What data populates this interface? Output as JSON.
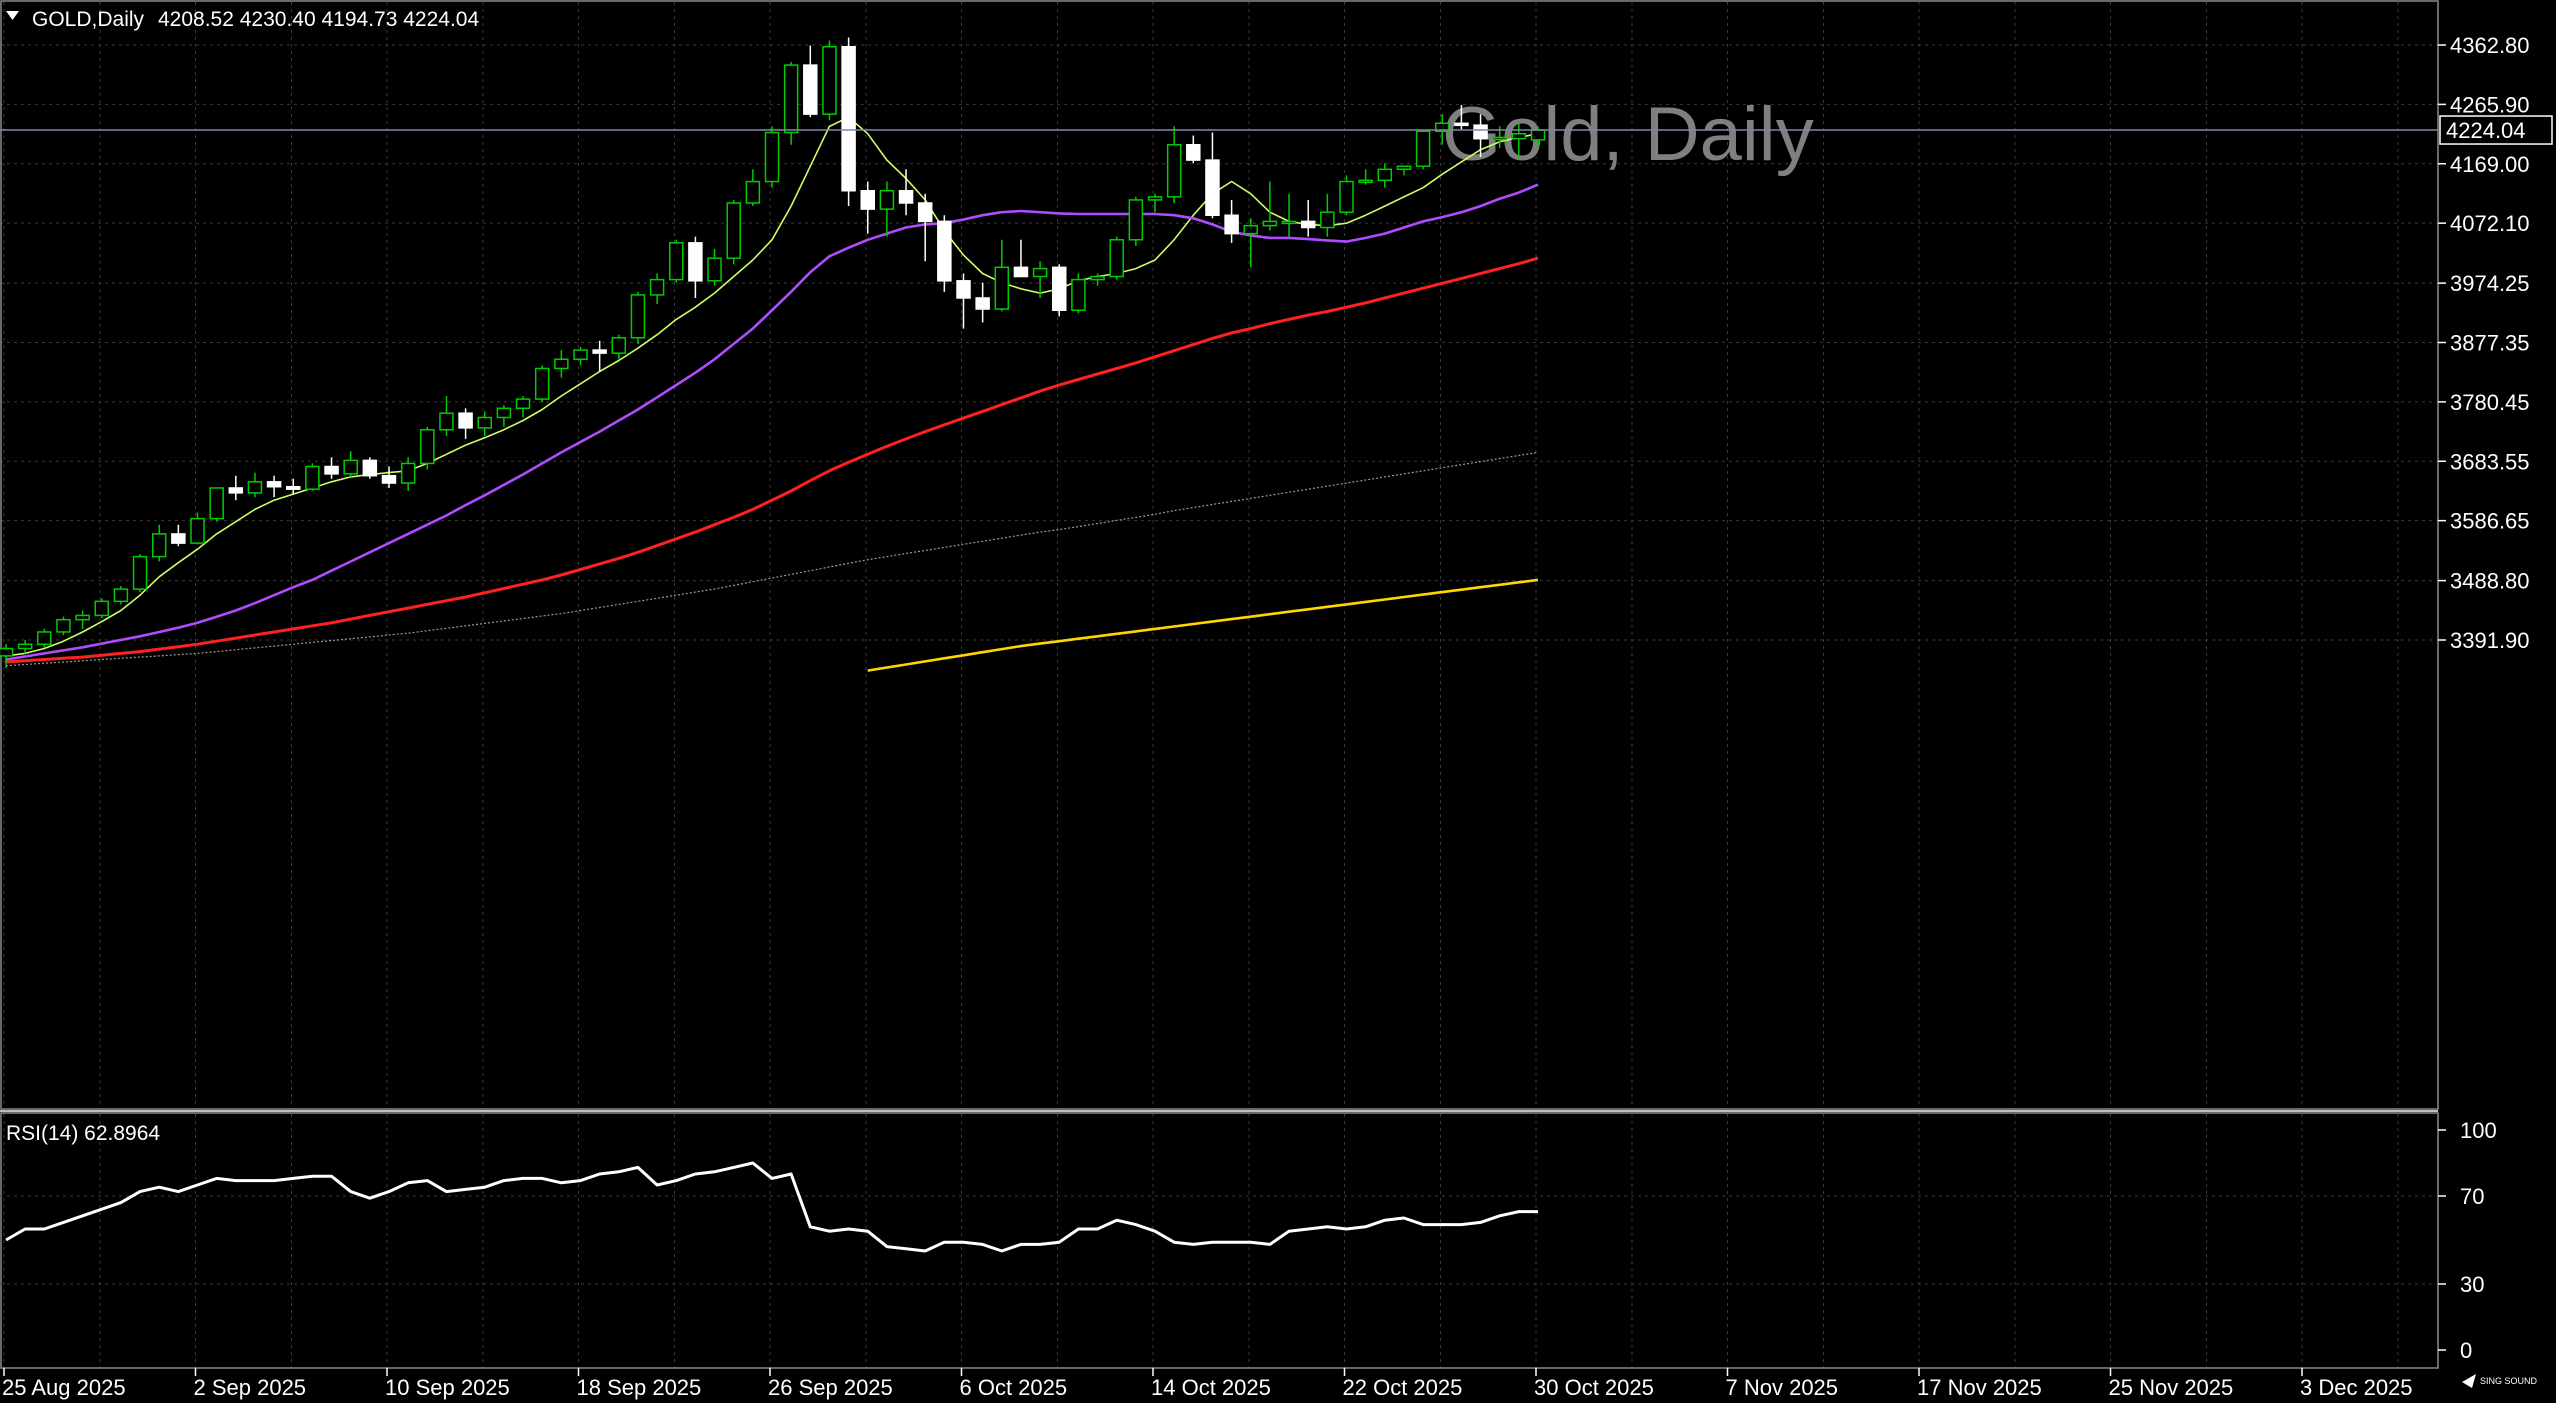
{
  "header": {
    "arrow_icon": "triangle-down-icon",
    "symbol": "GOLD,Daily",
    "ohlc": "4208.52 4230.40 4194.73 4224.04"
  },
  "watermark": "Gold, Daily",
  "current_price_label": "4224.04",
  "brand_logo_text": "SING SOUND",
  "colors": {
    "background": "#000000",
    "grid": "#3a3a3a",
    "bull_candle": "#00cc00",
    "bear_candle": "#ffffff",
    "ma_fast": "#ccff66",
    "ma_mid": "#b04cff",
    "ma_slow": "#ff2020",
    "ma_long": "#9a9a9a",
    "ma_longest": "#ffd700",
    "rsi_line": "#ffffff"
  },
  "chart_data": [
    {
      "type": "candlestick",
      "title": "Gold, Daily",
      "y_ticks": [
        "4362.80",
        "4265.90",
        "4169.00",
        "4072.10",
        "3974.25",
        "3877.35",
        "3780.45",
        "3683.55",
        "3586.65",
        "3488.80",
        "3391.90"
      ],
      "x_ticks": [
        "25 Aug 2025",
        "2 Sep 2025",
        "10 Sep 2025",
        "18 Sep 2025",
        "26 Sep 2025",
        "6 Oct 2025",
        "14 Oct 2025",
        "22 Oct 2025",
        "30 Oct 2025",
        "7 Nov 2025",
        "17 Nov 2025",
        "25 Nov 2025",
        "3 Dec 2025"
      ],
      "y_range": [
        3342,
        4400
      ],
      "grid": true,
      "candles": [
        [
          3366,
          3385,
          3346,
          3378
        ],
        [
          3378,
          3392,
          3370,
          3385
        ],
        [
          3385,
          3410,
          3380,
          3405
        ],
        [
          3405,
          3430,
          3400,
          3425
        ],
        [
          3425,
          3440,
          3410,
          3432
        ],
        [
          3432,
          3460,
          3428,
          3455
        ],
        [
          3455,
          3480,
          3450,
          3475
        ],
        [
          3475,
          3532,
          3470,
          3528
        ],
        [
          3528,
          3580,
          3520,
          3565
        ],
        [
          3565,
          3580,
          3545,
          3550
        ],
        [
          3550,
          3600,
          3548,
          3590
        ],
        [
          3590,
          3640,
          3585,
          3640
        ],
        [
          3640,
          3660,
          3620,
          3632
        ],
        [
          3632,
          3665,
          3625,
          3650
        ],
        [
          3650,
          3660,
          3625,
          3642
        ],
        [
          3642,
          3655,
          3630,
          3638
        ],
        [
          3638,
          3680,
          3635,
          3675
        ],
        [
          3675,
          3690,
          3655,
          3663
        ],
        [
          3663,
          3700,
          3658,
          3685
        ],
        [
          3685,
          3690,
          3655,
          3660
        ],
        [
          3660,
          3675,
          3640,
          3648
        ],
        [
          3648,
          3690,
          3635,
          3680
        ],
        [
          3680,
          3740,
          3670,
          3735
        ],
        [
          3735,
          3790,
          3725,
          3762
        ],
        [
          3762,
          3770,
          3720,
          3738
        ],
        [
          3738,
          3765,
          3725,
          3755
        ],
        [
          3755,
          3775,
          3740,
          3770
        ],
        [
          3770,
          3790,
          3755,
          3785
        ],
        [
          3785,
          3840,
          3780,
          3835
        ],
        [
          3835,
          3865,
          3820,
          3850
        ],
        [
          3850,
          3870,
          3840,
          3865
        ],
        [
          3865,
          3880,
          3830,
          3860
        ],
        [
          3860,
          3890,
          3850,
          3885
        ],
        [
          3885,
          3960,
          3875,
          3955
        ],
        [
          3955,
          3990,
          3940,
          3980
        ],
        [
          3980,
          4045,
          3975,
          4040
        ],
        [
          4040,
          4050,
          3950,
          3978
        ],
        [
          3978,
          4030,
          3970,
          4015
        ],
        [
          4015,
          4110,
          4005,
          4105
        ],
        [
          4105,
          4160,
          4100,
          4140
        ],
        [
          4140,
          4230,
          4130,
          4220
        ],
        [
          4220,
          4335,
          4200,
          4330
        ],
        [
          4330,
          4362,
          4245,
          4250
        ],
        [
          4250,
          4370,
          4240,
          4360
        ],
        [
          4360,
          4375,
          4100,
          4125
        ],
        [
          4125,
          4140,
          4055,
          4095
        ],
        [
          4095,
          4140,
          4050,
          4125
        ],
        [
          4125,
          4160,
          4085,
          4105
        ],
        [
          4105,
          4120,
          4010,
          4075
        ],
        [
          4075,
          4085,
          3960,
          3978
        ],
        [
          3978,
          3990,
          3900,
          3950
        ],
        [
          3950,
          3975,
          3910,
          3932
        ],
        [
          3932,
          4045,
          3928,
          4000
        ],
        [
          4000,
          4045,
          3995,
          3985
        ],
        [
          3985,
          4010,
          3950,
          3998
        ],
        [
          4000,
          4005,
          3920,
          3930
        ],
        [
          3930,
          3990,
          3925,
          3980
        ],
        [
          3980,
          3990,
          3970,
          3985
        ],
        [
          3985,
          4050,
          3980,
          4045
        ],
        [
          4045,
          4115,
          4035,
          4110
        ],
        [
          4110,
          4120,
          4090,
          4115
        ],
        [
          4115,
          4230,
          4105,
          4200
        ],
        [
          4200,
          4215,
          4170,
          4175
        ],
        [
          4175,
          4220,
          4080,
          4085
        ],
        [
          4085,
          4110,
          4040,
          4055
        ],
        [
          4055,
          4080,
          4000,
          4068
        ],
        [
          4068,
          4140,
          4060,
          4075
        ],
        [
          4075,
          4120,
          4050,
          4075
        ],
        [
          4075,
          4110,
          4050,
          4065
        ],
        [
          4065,
          4120,
          4050,
          4090
        ],
        [
          4090,
          4150,
          4085,
          4140
        ],
        [
          4140,
          4160,
          4135,
          4142
        ],
        [
          4142,
          4170,
          4130,
          4160
        ],
        [
          4160,
          4165,
          4150,
          4165
        ],
        [
          4165,
          4225,
          4160,
          4222
        ],
        [
          4222,
          4250,
          4200,
          4235
        ],
        [
          4235,
          4265,
          4225,
          4232
        ],
        [
          4232,
          4250,
          4180,
          4210
        ],
        [
          4210,
          4230,
          4195,
          4212
        ],
        [
          4210,
          4235,
          4180,
          4218
        ],
        [
          4208,
          4230,
          4195,
          4224
        ]
      ],
      "series": [
        {
          "label": "ma-fast",
          "values": [
            3366,
            3370,
            3378,
            3390,
            3405,
            3422,
            3440,
            3465,
            3495,
            3518,
            3540,
            3565,
            3585,
            3605,
            3620,
            3630,
            3640,
            3650,
            3658,
            3662,
            3665,
            3668,
            3680,
            3695,
            3710,
            3722,
            3735,
            3750,
            3768,
            3790,
            3810,
            3830,
            3848,
            3868,
            3890,
            3915,
            3935,
            3958,
            3985,
            4012,
            4045,
            4100,
            4165,
            4230,
            4245,
            4218,
            4175,
            4145,
            4110,
            4060,
            4020,
            3990,
            3975,
            3965,
            3958,
            3965,
            3978,
            3985,
            3990,
            3998,
            4012,
            4045,
            4085,
            4120,
            4140,
            4120,
            4090,
            4075,
            4070,
            4068,
            4072,
            4085,
            4100,
            4115,
            4130,
            4152,
            4172,
            4192,
            4205,
            4212,
            4218
          ]
        },
        {
          "label": "ma-mid",
          "values": [
            3360,
            3365,
            3370,
            3375,
            3380,
            3386,
            3392,
            3398,
            3405,
            3412,
            3420,
            3430,
            3440,
            3452,
            3465,
            3478,
            3490,
            3505,
            3520,
            3535,
            3550,
            3565,
            3580,
            3595,
            3612,
            3628,
            3645,
            3662,
            3680,
            3698,
            3715,
            3732,
            3750,
            3768,
            3788,
            3808,
            3828,
            3850,
            3875,
            3900,
            3930,
            3960,
            3992,
            4018,
            4032,
            4045,
            4055,
            4065,
            4070,
            4072,
            4078,
            4085,
            4090,
            4092,
            4090,
            4088,
            4087,
            4087,
            4087,
            4087,
            4087,
            4085,
            4080,
            4070,
            4058,
            4052,
            4048,
            4048,
            4046,
            4044,
            4042,
            4048,
            4055,
            4065,
            4075,
            4082,
            4090,
            4100,
            4112,
            4122,
            4135
          ]
        },
        {
          "label": "ma-slow",
          "values": [
            3356,
            3358,
            3360,
            3362,
            3364,
            3367,
            3370,
            3373,
            3377,
            3381,
            3385,
            3390,
            3395,
            3400,
            3405,
            3410,
            3415,
            3420,
            3426,
            3432,
            3438,
            3444,
            3450,
            3456,
            3462,
            3469,
            3476,
            3483,
            3490,
            3498,
            3507,
            3516,
            3525,
            3535,
            3546,
            3557,
            3568,
            3580,
            3592,
            3605,
            3620,
            3635,
            3652,
            3668,
            3682,
            3695,
            3708,
            3720,
            3732,
            3743,
            3754,
            3765,
            3776,
            3787,
            3798,
            3808,
            3817,
            3826,
            3835,
            3844,
            3854,
            3864,
            3874,
            3884,
            3893,
            3900,
            3908,
            3915,
            3922,
            3928,
            3935,
            3942,
            3950,
            3958,
            3966,
            3974,
            3982,
            3990,
            3998,
            4006,
            4015
          ]
        },
        {
          "label": "ma-long",
          "values": [
            3350,
            3352,
            3354,
            3356,
            3358,
            3360,
            3362,
            3364,
            3366,
            3368,
            3370,
            3373,
            3376,
            3379,
            3382,
            3385,
            3388,
            3391,
            3394,
            3397,
            3400,
            3403,
            3407,
            3411,
            3415,
            3419,
            3423,
            3427,
            3431,
            3435,
            3440,
            3445,
            3450,
            3455,
            3460,
            3465,
            3470,
            3475,
            3481,
            3487,
            3493,
            3499,
            3505,
            3511,
            3517,
            3523,
            3528,
            3533,
            3538,
            3543,
            3548,
            3553,
            3558,
            3563,
            3568,
            3572,
            3577,
            3582,
            3587,
            3592,
            3597,
            3603,
            3608,
            3613,
            3618,
            3623,
            3628,
            3633,
            3638,
            3643,
            3648,
            3653,
            3658,
            3663,
            3668,
            3673,
            3678,
            3683,
            3688,
            3693,
            3698
          ]
        },
        {
          "label": "ma-longest",
          "values": [
            null,
            null,
            null,
            null,
            null,
            null,
            null,
            null,
            null,
            null,
            null,
            null,
            null,
            null,
            null,
            null,
            null,
            null,
            null,
            null,
            null,
            null,
            null,
            null,
            null,
            null,
            null,
            null,
            null,
            null,
            null,
            null,
            null,
            null,
            null,
            null,
            null,
            null,
            null,
            null,
            null,
            null,
            null,
            null,
            null,
            3342,
            3347,
            3352,
            3357,
            3362,
            3367,
            3372,
            3377,
            3382,
            3386,
            3390,
            3394,
            3398,
            3402,
            3406,
            3410,
            3414,
            3418,
            3422,
            3426,
            3430,
            3434,
            3438,
            3442,
            3446,
            3450,
            3454,
            3458,
            3462,
            3466,
            3470,
            3474,
            3478,
            3482,
            3486,
            3490
          ]
        }
      ]
    },
    {
      "type": "line",
      "title": "RSI(14) 62.8964",
      "y_ticks": [
        "100",
        "70",
        "30",
        "0"
      ],
      "y_range": [
        0,
        100
      ],
      "values": [
        50,
        55,
        55,
        58,
        61,
        64,
        67,
        72,
        74,
        72,
        75,
        78,
        77,
        77,
        77,
        78,
        79,
        79,
        72,
        69,
        72,
        76,
        77,
        72,
        73,
        74,
        77,
        78,
        78,
        76,
        77,
        80,
        81,
        83,
        75,
        77,
        80,
        81,
        83,
        85,
        78,
        80,
        56,
        54,
        55,
        54,
        47,
        46,
        45,
        49,
        49,
        48,
        45,
        48,
        48,
        49,
        55,
        55,
        59,
        57,
        54,
        49,
        48,
        49,
        49,
        49,
        48,
        54,
        55,
        56,
        55,
        56,
        59,
        60,
        57,
        57,
        57,
        58,
        61,
        62.8964,
        62.8964
      ]
    }
  ]
}
